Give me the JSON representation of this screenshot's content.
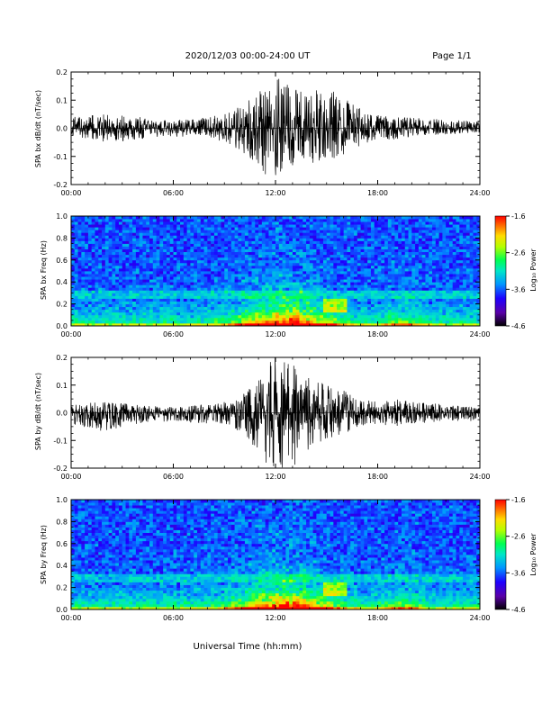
{
  "header": {
    "title": "2020/12/03  00:00-24:00 UT",
    "page": "Page 1/1"
  },
  "footer": {
    "xlabel": "Universal Time (hh:mm)"
  },
  "colors": {
    "waveform": "#000000",
    "colormap": [
      "#000000",
      "#5a00a8",
      "#1e00ff",
      "#0096ff",
      "#00e6c8",
      "#00ff50",
      "#b4ff00",
      "#ffdc00",
      "#ff6400",
      "#ff0000"
    ]
  },
  "chart_data": [
    {
      "type": "line",
      "ylabel": "SPA bx dB/dt (nT/sec)",
      "xlim": [
        0,
        24
      ],
      "ylim": [
        -0.2,
        0.2
      ],
      "xtick_labels": [
        "00:00",
        "06:00",
        "12:00",
        "18:00",
        "24:00"
      ],
      "ytick_labels": [
        "-0.2",
        "-0.1",
        "0.0",
        "0.1",
        "0.2"
      ],
      "series": [
        {
          "x": [
            0,
            2,
            4,
            6,
            8,
            9,
            10,
            11,
            11.5,
            12,
            13,
            14,
            15,
            16,
            17,
            18,
            19,
            20,
            22,
            24
          ],
          "y": [
            0.04,
            0.05,
            0.04,
            0.03,
            0.04,
            0.05,
            0.08,
            0.13,
            0.17,
            0.18,
            0.16,
            0.14,
            0.15,
            0.11,
            0.07,
            0.05,
            0.04,
            0.04,
            0.03,
            0.025
          ],
          "y_low": [
            -0.03,
            -0.05,
            -0.04,
            -0.03,
            -0.03,
            -0.05,
            -0.08,
            -0.14,
            -0.17,
            -0.19,
            -0.15,
            -0.13,
            -0.12,
            -0.1,
            -0.06,
            -0.04,
            -0.04,
            -0.03,
            -0.02,
            -0.015
          ]
        }
      ]
    },
    {
      "type": "heatmap",
      "ylabel": "SPA bx Freq (Hz)",
      "xlim": [
        0,
        24
      ],
      "ylim": [
        0.0,
        1.0
      ],
      "colorbar_label": "Log₁₀ Power",
      "colorbar_range": [
        -4.6,
        -1.6
      ],
      "colorbar_tick_labels": [
        "-1.6",
        "-2.6",
        "-3.6",
        "-4.6"
      ],
      "xtick_labels": [
        "00:00",
        "06:00",
        "12:00",
        "18:00",
        "24:00"
      ],
      "ytick_labels": [
        "0.0",
        "0.2",
        "0.4",
        "0.6",
        "0.8",
        "1.0"
      ]
    },
    {
      "type": "line",
      "ylabel": "SPA by dB/dt (nT/sec)",
      "xlim": [
        0,
        24
      ],
      "ylim": [
        -0.2,
        0.2
      ],
      "xtick_labels": [
        "00:00",
        "06:00",
        "12:00",
        "18:00",
        "24:00"
      ],
      "ytick_labels": [
        "-0.2",
        "-0.1",
        "0.0",
        "0.1",
        "0.2"
      ],
      "series": [
        {
          "x": [
            0,
            2,
            4,
            6,
            8,
            9,
            10,
            11,
            11.5,
            12,
            13,
            14,
            15,
            16,
            17,
            18,
            19,
            20,
            22,
            24
          ],
          "y": [
            0.03,
            0.04,
            0.03,
            0.02,
            0.03,
            0.04,
            0.06,
            0.12,
            0.18,
            0.2,
            0.18,
            0.13,
            0.1,
            0.08,
            0.05,
            0.04,
            0.05,
            0.04,
            0.03,
            0.02
          ],
          "y_low": [
            -0.04,
            -0.07,
            -0.04,
            -0.03,
            -0.04,
            -0.04,
            -0.08,
            -0.14,
            -0.2,
            -0.2,
            -0.2,
            -0.14,
            -0.1,
            -0.08,
            -0.05,
            -0.04,
            -0.05,
            -0.04,
            -0.03,
            -0.03
          ]
        }
      ]
    },
    {
      "type": "heatmap",
      "ylabel": "SPA by Freq (Hz)",
      "xlim": [
        0,
        24
      ],
      "ylim": [
        0.0,
        1.0
      ],
      "colorbar_label": "Log₁₀ Power",
      "colorbar_range": [
        -4.6,
        -1.6
      ],
      "colorbar_tick_labels": [
        "-1.6",
        "-2.6",
        "-3.6",
        "-4.6"
      ],
      "xtick_labels": [
        "00:00",
        "06:00",
        "12:00",
        "18:00",
        "24:00"
      ],
      "ytick_labels": [
        "0.0",
        "0.2",
        "0.4",
        "0.6",
        "0.8",
        "1.0"
      ]
    }
  ]
}
